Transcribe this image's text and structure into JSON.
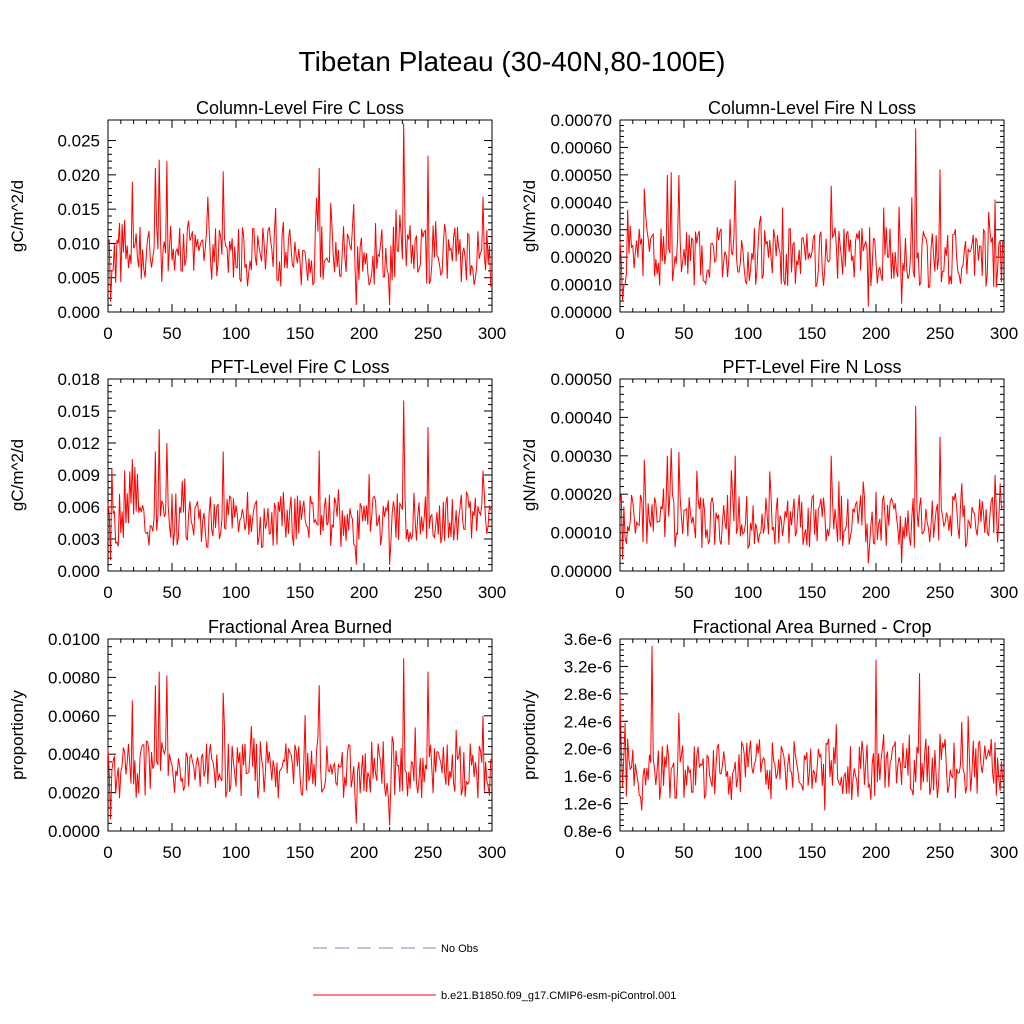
{
  "title": "Tibetan Plateau (30-40N,80-100E)",
  "legend": {
    "items": [
      {
        "label": "No Obs",
        "style": "dashed",
        "color": "#8080c0"
      },
      {
        "label": "b.e21.B1850.f09_g17.CMIP6-esm-piControl.001",
        "style": "solid",
        "color": "#ff0000"
      }
    ]
  },
  "colors": {
    "series": "#ff0000",
    "axis": "#000000"
  },
  "chart_data": [
    {
      "type": "line",
      "title": "Column-Level Fire C Loss",
      "xlabel": "",
      "ylabel": "gC/m^2/d",
      "xlim": [
        0,
        300
      ],
      "ylim": [
        0,
        0.028
      ],
      "xticks": [
        "0",
        "50",
        "100",
        "150",
        "200",
        "250",
        "300"
      ],
      "yticks": [
        {
          "v": 0,
          "t": "0.000"
        },
        {
          "v": 0.005,
          "t": "0.005"
        },
        {
          "v": 0.01,
          "t": "0.010"
        },
        {
          "v": 0.015,
          "t": "0.015"
        },
        {
          "v": 0.02,
          "t": "0.020"
        },
        {
          "v": 0.025,
          "t": "0.025"
        }
      ],
      "series": [
        {
          "name": "b.e21.B1850.f09_g17.CMIP6-esm-piControl.001",
          "base": 0.0082,
          "amp": 0.0045,
          "peaks": [
            [
              2,
              0.0015
            ],
            [
              19,
              0.019
            ],
            [
              37,
              0.021
            ],
            [
              40,
              0.0222
            ],
            [
              46,
              0.022
            ],
            [
              90,
              0.0205
            ],
            [
              165,
              0.021
            ],
            [
              194,
              0.001
            ],
            [
              220,
              0.001
            ],
            [
              231,
              0.0275
            ],
            [
              250,
              0.0228
            ],
            [
              293,
              0.0168
            ]
          ]
        }
      ]
    },
    {
      "type": "line",
      "title": "Column-Level Fire N Loss",
      "xlabel": "",
      "ylabel": "gN/m^2/d",
      "xlim": [
        0,
        300
      ],
      "ylim": [
        0,
        0.0007
      ],
      "xticks": [
        "0",
        "50",
        "100",
        "150",
        "200",
        "250",
        "300"
      ],
      "yticks": [
        {
          "v": 0,
          "t": "0.00000"
        },
        {
          "v": 0.0001,
          "t": "0.00010"
        },
        {
          "v": 0.0002,
          "t": "0.00020"
        },
        {
          "v": 0.0003,
          "t": "0.00030"
        },
        {
          "v": 0.0004,
          "t": "0.00040"
        },
        {
          "v": 0.0005,
          "t": "0.00050"
        },
        {
          "v": 0.0006,
          "t": "0.00060"
        },
        {
          "v": 0.0007,
          "t": "0.00070"
        }
      ],
      "series": [
        {
          "name": "b.e21.B1850.f09_g17.CMIP6-esm-piControl.001",
          "base": 0.0002,
          "amp": 0.00011,
          "peaks": [
            [
              2,
              4e-05
            ],
            [
              19,
              0.00045
            ],
            [
              37,
              0.0005
            ],
            [
              40,
              0.00051
            ],
            [
              46,
              0.0005
            ],
            [
              90,
              0.00048
            ],
            [
              165,
              0.00046
            ],
            [
              194,
              2e-05
            ],
            [
              220,
              3e-05
            ],
            [
              231,
              0.00067
            ],
            [
              250,
              0.00052
            ],
            [
              293,
              0.00041
            ]
          ]
        }
      ]
    },
    {
      "type": "line",
      "title": "PFT-Level Fire C Loss",
      "xlabel": "",
      "ylabel": "gC/m^2/d",
      "xlim": [
        0,
        300
      ],
      "ylim": [
        0,
        0.018
      ],
      "xticks": [
        "0",
        "50",
        "100",
        "150",
        "200",
        "250",
        "300"
      ],
      "yticks": [
        {
          "v": 0,
          "t": "0.000"
        },
        {
          "v": 0.003,
          "t": "0.003"
        },
        {
          "v": 0.006,
          "t": "0.006"
        },
        {
          "v": 0.009,
          "t": "0.009"
        },
        {
          "v": 0.012,
          "t": "0.012"
        },
        {
          "v": 0.015,
          "t": "0.015"
        },
        {
          "v": 0.018,
          "t": "0.018"
        }
      ],
      "series": [
        {
          "name": "b.e21.B1850.f09_g17.CMIP6-esm-piControl.001",
          "base": 0.0048,
          "amp": 0.0026,
          "peaks": [
            [
              2,
              0.001
            ],
            [
              19,
              0.0105
            ],
            [
              37,
              0.0112
            ],
            [
              40,
              0.0133
            ],
            [
              46,
              0.012
            ],
            [
              90,
              0.0112
            ],
            [
              165,
              0.0113
            ],
            [
              194,
              0.0006
            ],
            [
              220,
              0.0006
            ],
            [
              231,
              0.016
            ],
            [
              250,
              0.0135
            ],
            [
              293,
              0.0094
            ]
          ]
        }
      ]
    },
    {
      "type": "line",
      "title": "PFT-Level Fire N Loss",
      "xlabel": "",
      "ylabel": "gN/m^2/d",
      "xlim": [
        0,
        300
      ],
      "ylim": [
        0,
        0.0005
      ],
      "xticks": [
        "0",
        "50",
        "100",
        "150",
        "200",
        "250",
        "300"
      ],
      "yticks": [
        {
          "v": 0,
          "t": "0.00000"
        },
        {
          "v": 0.0001,
          "t": "0.00010"
        },
        {
          "v": 0.0002,
          "t": "0.00020"
        },
        {
          "v": 0.0003,
          "t": "0.00030"
        },
        {
          "v": 0.0004,
          "t": "0.00040"
        },
        {
          "v": 0.0005,
          "t": "0.00050"
        }
      ],
      "series": [
        {
          "name": "b.e21.B1850.f09_g17.CMIP6-esm-piControl.001",
          "base": 0.00013,
          "amp": 7e-05,
          "peaks": [
            [
              2,
              3e-05
            ],
            [
              19,
              0.00029
            ],
            [
              37,
              0.0003
            ],
            [
              40,
              0.00032
            ],
            [
              46,
              0.00031
            ],
            [
              90,
              0.0003
            ],
            [
              165,
              0.0003
            ],
            [
              194,
              2e-05
            ],
            [
              220,
              2e-05
            ],
            [
              231,
              0.00043
            ],
            [
              250,
              0.00035
            ],
            [
              293,
              0.00025
            ]
          ]
        }
      ]
    },
    {
      "type": "line",
      "title": "Fractional Area Burned",
      "xlabel": "",
      "ylabel": "proportion/y",
      "xlim": [
        0,
        300
      ],
      "ylim": [
        0,
        0.01
      ],
      "xticks": [
        "0",
        "50",
        "100",
        "150",
        "200",
        "250",
        "300"
      ],
      "yticks": [
        {
          "v": 0,
          "t": "0.0000"
        },
        {
          "v": 0.002,
          "t": "0.0020"
        },
        {
          "v": 0.004,
          "t": "0.0040"
        },
        {
          "v": 0.006,
          "t": "0.0060"
        },
        {
          "v": 0.008,
          "t": "0.0080"
        },
        {
          "v": 0.01,
          "t": "0.0100"
        }
      ],
      "series": [
        {
          "name": "b.e21.B1850.f09_g17.CMIP6-esm-piControl.001",
          "base": 0.0032,
          "amp": 0.0015,
          "peaks": [
            [
              2,
              0.0006
            ],
            [
              19,
              0.0068
            ],
            [
              37,
              0.0076
            ],
            [
              40,
              0.0083
            ],
            [
              46,
              0.0081
            ],
            [
              90,
              0.0072
            ],
            [
              165,
              0.0076
            ],
            [
              194,
              0.0004
            ],
            [
              220,
              0.0003
            ],
            [
              231,
              0.009
            ],
            [
              250,
              0.0083
            ],
            [
              293,
              0.006
            ]
          ]
        }
      ]
    },
    {
      "type": "line",
      "title": "Fractional Area Burned - Crop",
      "xlabel": "",
      "ylabel": "proportion/y",
      "xlim": [
        0,
        300
      ],
      "ylim": [
        8e-07,
        3.6e-06
      ],
      "xticks": [
        "0",
        "50",
        "100",
        "150",
        "200",
        "250",
        "300"
      ],
      "yticks": [
        {
          "v": 8e-07,
          "t": "0.8e-6"
        },
        {
          "v": 1.2e-06,
          "t": "1.2e-6"
        },
        {
          "v": 1.6e-06,
          "t": "1.6e-6"
        },
        {
          "v": 2e-06,
          "t": "2.0e-6"
        },
        {
          "v": 2.4e-06,
          "t": "2.4e-6"
        },
        {
          "v": 2.8e-06,
          "t": "2.8e-6"
        },
        {
          "v": 3.2e-06,
          "t": "3.2e-6"
        },
        {
          "v": 3.6e-06,
          "t": "3.6e-6"
        }
      ],
      "series": [
        {
          "name": "b.e21.B1850.f09_g17.CMIP6-esm-piControl.001",
          "base": 1.7e-06,
          "amp": 4.5e-07,
          "peaks": [
            [
              0,
              2.8e-06
            ],
            [
              17,
              1.1e-06
            ],
            [
              25,
              3.5e-06
            ],
            [
              200,
              3.3e-06
            ],
            [
              234,
              3.1e-06
            ],
            [
              160,
              1.1e-06
            ]
          ]
        }
      ]
    }
  ]
}
